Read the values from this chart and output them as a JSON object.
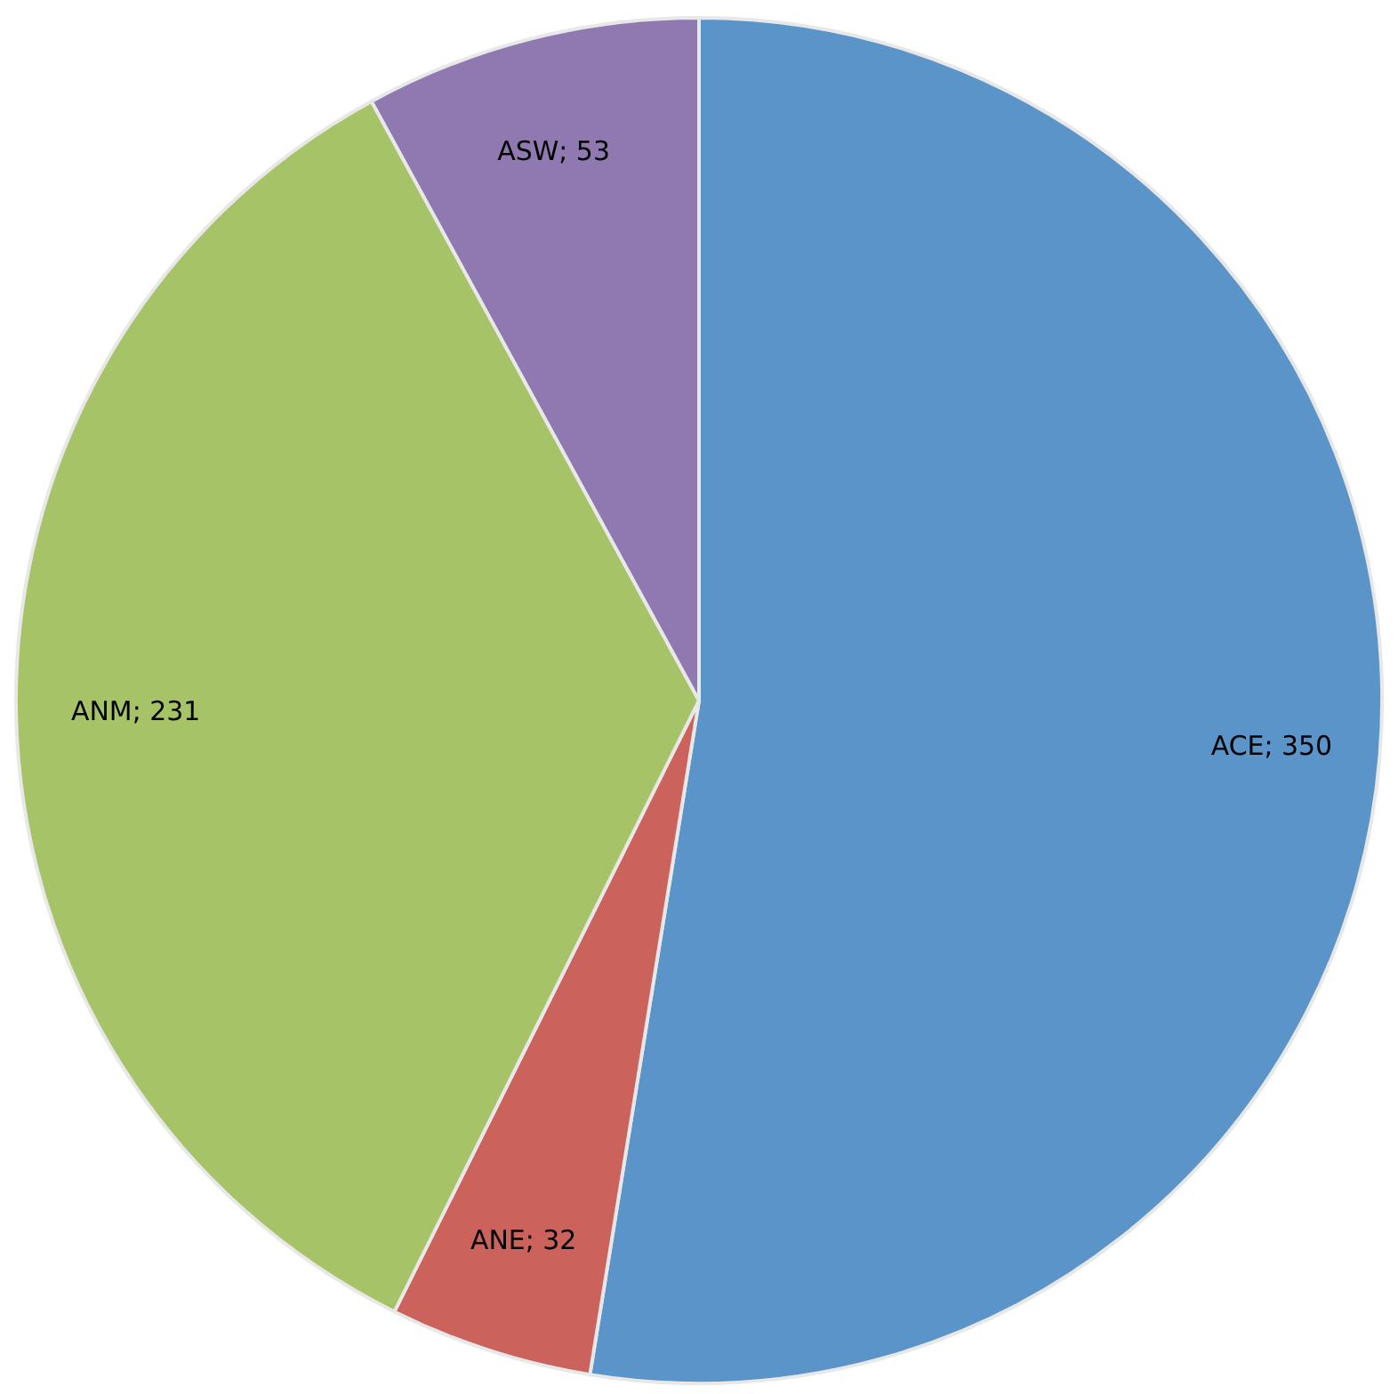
{
  "chart_data": {
    "type": "pie",
    "categories": [
      "ACE",
      "ANE",
      "ANM",
      "ASW"
    ],
    "values": [
      350,
      32,
      231,
      53
    ],
    "colors": [
      "#5b94c8",
      "#cb625c",
      "#a6c467",
      "#8f79b0"
    ],
    "value_labels": [
      "; 350",
      "; 32",
      "; 231",
      "; 53"
    ],
    "legend": false
  }
}
